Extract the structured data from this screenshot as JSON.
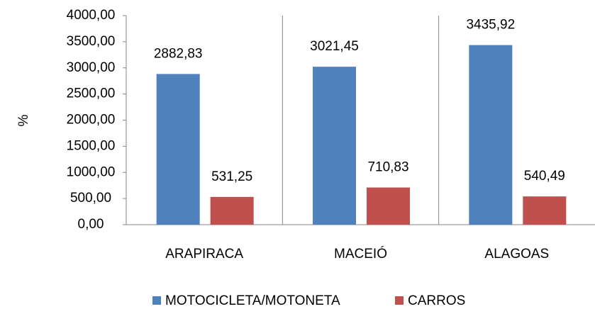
{
  "chart_data": {
    "type": "bar",
    "y_label": "%",
    "categories": [
      "ARAPIRACA",
      "MACEIÓ",
      "ALAGOAS"
    ],
    "series": [
      {
        "name": "MOTOCICLETA/MOTONETA",
        "color": "#4f81bd",
        "values": [
          2882.83,
          3021.45,
          3435.92
        ],
        "value_labels": [
          "2882,83",
          "3021,45",
          "3435,92"
        ]
      },
      {
        "name": "CARROS",
        "color": "#c0504d",
        "values": [
          531.25,
          710.83,
          540.49
        ],
        "value_labels": [
          "531,25",
          "710,83",
          "540,49"
        ]
      }
    ],
    "ylim": [
      0,
      4000
    ],
    "yticks": [
      {
        "value": 0,
        "label": "0,00"
      },
      {
        "value": 500,
        "label": "500,00"
      },
      {
        "value": 1000,
        "label": "1000,00"
      },
      {
        "value": 1500,
        "label": "1500,00"
      },
      {
        "value": 2000,
        "label": "2000,00"
      },
      {
        "value": 2500,
        "label": "2500,00"
      },
      {
        "value": 3000,
        "label": "3000,00"
      },
      {
        "value": 3500,
        "label": "3500,00"
      },
      {
        "value": 4000,
        "label": "4000,00"
      }
    ],
    "grid": false,
    "legend": "bottom"
  }
}
